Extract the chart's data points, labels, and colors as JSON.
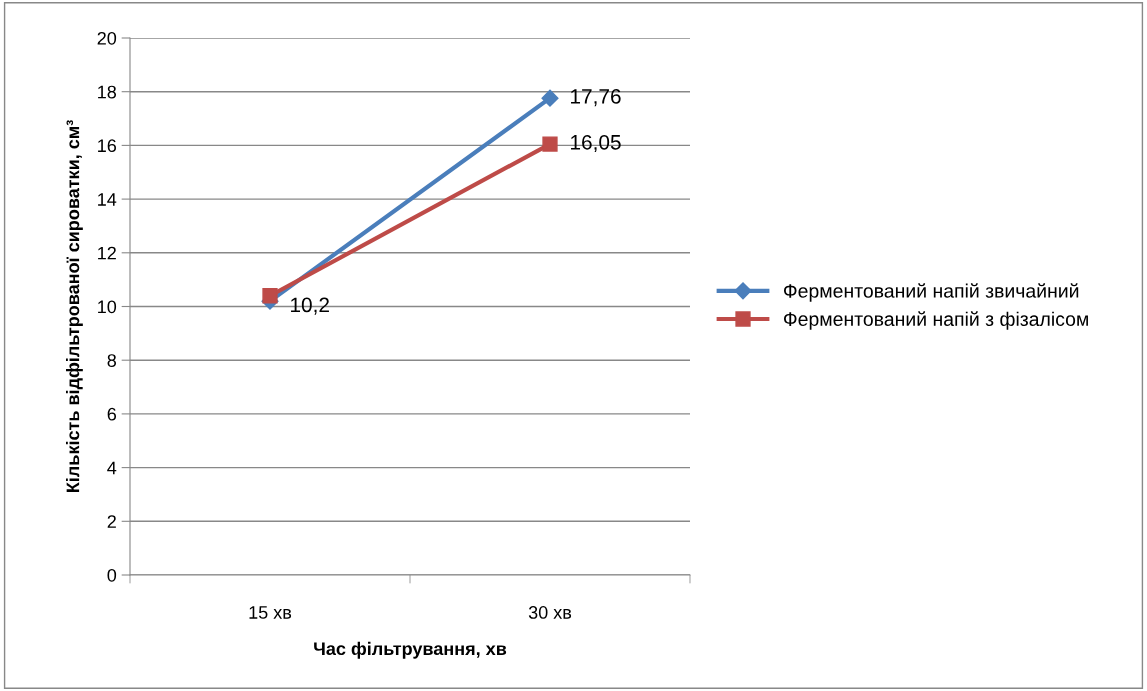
{
  "chart_data": {
    "type": "line",
    "xlabel": "Час фільтрування, хв",
    "ylabel": "Кількість відфільтрованої сироватки, см³",
    "categories": [
      "15 хв",
      "30 хв"
    ],
    "series": [
      {
        "name": "Ферментований напій звичайний",
        "color": "#4a7ebb",
        "marker": "diamond",
        "values": [
          10.2,
          17.76
        ],
        "value_labels": [
          "10,2",
          "17,76"
        ]
      },
      {
        "name": "Ферментований напій з фізалісом",
        "color": "#be4b48",
        "marker": "square",
        "values": [
          10.4,
          16.05
        ],
        "value_labels": [
          null,
          "16,05"
        ]
      }
    ],
    "ylim": [
      0,
      20
    ],
    "yticks": [
      0,
      2,
      4,
      6,
      8,
      10,
      12,
      14,
      16,
      18,
      20
    ],
    "grid": "y",
    "legend": "right"
  }
}
